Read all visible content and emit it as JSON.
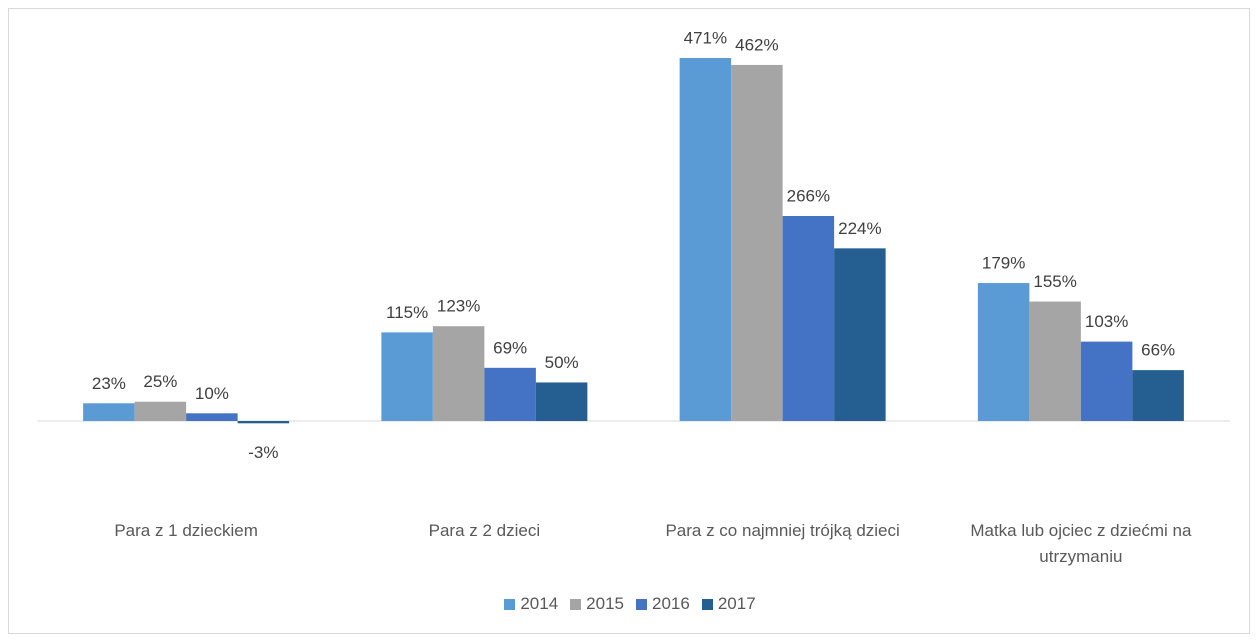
{
  "chart_data": {
    "type": "bar",
    "categories": [
      "Para z 1 dzieckiem",
      "Para z 2 dzieci",
      "Para z co najmniej trójką dzieci",
      "Matka lub ojciec z dziećmi na utrzymaniu"
    ],
    "series": [
      {
        "name": "2014",
        "color": "#5b9bd5",
        "values": [
          23,
          115,
          471,
          179
        ],
        "value_labels": [
          "23%",
          "115%",
          "471%",
          "179%"
        ]
      },
      {
        "name": "2015",
        "color": "#a5a5a5",
        "values": [
          25,
          123,
          462,
          155
        ],
        "value_labels": [
          "25%",
          "123%",
          "462%",
          "155%"
        ]
      },
      {
        "name": "2016",
        "color": "#4472c4",
        "values": [
          10,
          69,
          266,
          103
        ],
        "value_labels": [
          "10%",
          "69%",
          "266%",
          "103%"
        ]
      },
      {
        "name": "2017",
        "color": "#255e91",
        "values": [
          -3,
          50,
          224,
          66
        ],
        "value_labels": [
          "-3%",
          "50%",
          "224%",
          "66%"
        ]
      }
    ]
  }
}
